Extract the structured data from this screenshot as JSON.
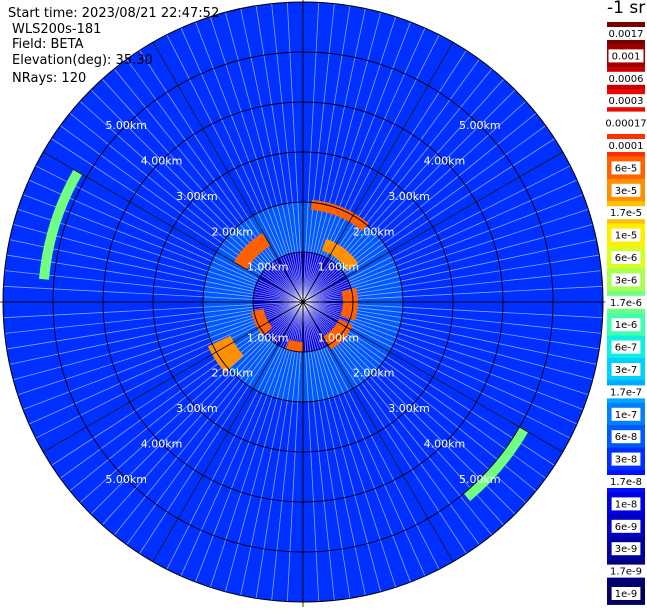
{
  "header": {
    "start_time": "Start time: 2023/08/21 22:47:52",
    "instrument": "WLS200s-181",
    "field": "Field: BETA",
    "elevation": "Elevation(deg): 35.30",
    "nrays": "NRays: 120"
  },
  "colorbar": {
    "units_label": "-1 sr",
    "ticks": [
      "0.0017",
      "0.001",
      "0.0006",
      "0.0003",
      "0.00017",
      "0.0001",
      "6e-5",
      "3e-5",
      "1.7e-5",
      "1e-5",
      "6e-6",
      "3e-6",
      "1.7e-6",
      "1e-6",
      "6e-7",
      "3e-7",
      "1.7e-7",
      "1e-7",
      "6e-8",
      "3e-8",
      "1.7e-8",
      "1e-8",
      "6e-9",
      "3e-9",
      "1.7e-9",
      "1e-9"
    ],
    "colors": [
      "#7a0000",
      "#a00000",
      "#c80000",
      "#ea0a00",
      "#ffffff",
      "#ff3000",
      "#ff6000",
      "#ff9000",
      "#ffc000",
      "#ffee00",
      "#d8ff20",
      "#a8ff50",
      "#70ff80",
      "#40ffb0",
      "#10f0e0",
      "#00d0ff",
      "#00a8ff",
      "#0080ff",
      "#0058ff",
      "#0030ff",
      "#0010ff",
      "#0000e0",
      "#0000c0",
      "#0000a0",
      "#000080",
      "#000060"
    ]
  },
  "chart_data": {
    "type": "heatmap",
    "projection": "polar PPI scan",
    "field": "BETA",
    "nrays": 120,
    "elevation_deg": 35.3,
    "range_rings_km": [
      1.0,
      2.0,
      3.0,
      4.0,
      5.0
    ],
    "ring_label_texts": [
      "1.00km",
      "2.00km",
      "3.00km",
      "4.00km",
      "5.00km"
    ],
    "max_range_km": 6.0,
    "radial_spokes_deg": [
      0,
      30,
      60,
      90,
      120,
      150,
      180,
      210,
      240,
      270,
      300,
      330
    ],
    "bands": [
      {
        "range_km": [
          0.0,
          1.0
        ],
        "level": "1e-8"
      },
      {
        "range_km": [
          1.0,
          2.0
        ],
        "level": "6e-8"
      },
      {
        "range_km": [
          2.0,
          6.0
        ],
        "level": "3e-8"
      }
    ],
    "high_echo_features": [
      {
        "range_km": [
          1.85,
          2.05
        ],
        "az_deg": [
          5,
          40
        ],
        "level": "6e-5"
      },
      {
        "range_km": [
          1.1,
          1.35
        ],
        "az_deg": [
          20,
          55
        ],
        "level": "3e-5"
      },
      {
        "range_km": [
          0.8,
          1.1
        ],
        "az_deg": [
          75,
          110
        ],
        "level": "6e-5"
      },
      {
        "range_km": [
          0.8,
          1.1
        ],
        "az_deg": [
          115,
          150
        ],
        "level": "6e-5"
      },
      {
        "range_km": [
          0.8,
          1.0
        ],
        "az_deg": [
          180,
          200
        ],
        "level": "6e-5"
      },
      {
        "range_km": [
          0.8,
          1.05
        ],
        "az_deg": [
          230,
          260
        ],
        "level": "6e-5"
      },
      {
        "range_km": [
          1.3,
          1.6
        ],
        "az_deg": [
          300,
          330
        ],
        "level": "6e-5"
      },
      {
        "range_km": [
          1.6,
          2.1
        ],
        "az_deg": [
          228,
          245
        ],
        "level": "3e-5"
      },
      {
        "range_km": [
          5.1,
          5.3
        ],
        "az_deg": [
          275,
          300
        ],
        "level": "1.7e-6"
      },
      {
        "range_km": [
          5.0,
          5.2
        ],
        "az_deg": [
          120,
          140
        ],
        "level": "1.7e-6"
      }
    ],
    "axis_spokes": "horizontal and vertical lines through scan center"
  }
}
